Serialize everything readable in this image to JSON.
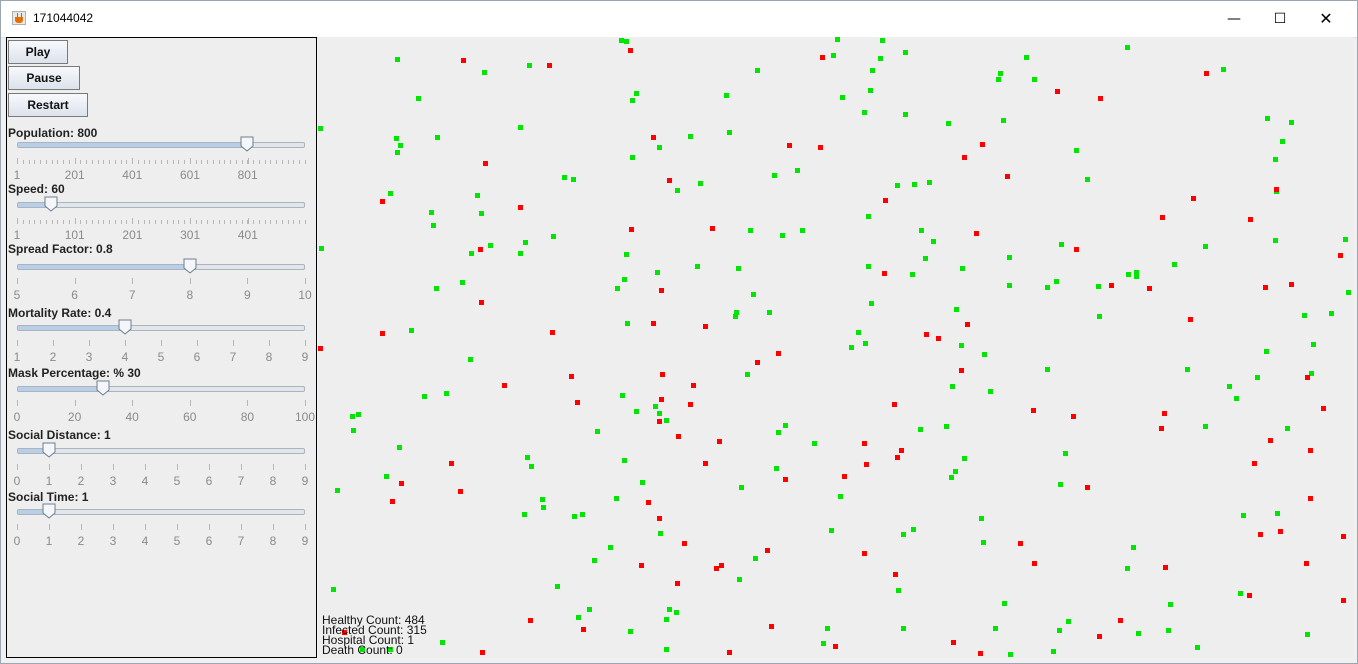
{
  "window": {
    "title": "171044042",
    "minimize_glyph": "—",
    "maximize_glyph": "☐",
    "close_glyph": "✕",
    "icon": "java-icon"
  },
  "buttons": {
    "play": "Play",
    "pause": "Pause",
    "restart": "Restart"
  },
  "sliders": [
    {
      "id": "population",
      "label": "Population: 800",
      "min": 1,
      "max": 1000,
      "value": 800,
      "ticks": [
        "1",
        "201",
        "401",
        "601",
        "801"
      ],
      "tick_values": [
        1,
        201,
        401,
        601,
        801
      ],
      "minor_ticks": true
    },
    {
      "id": "speed",
      "label": "Speed: 60",
      "min": 1,
      "max": 500,
      "value": 60,
      "ticks": [
        "1",
        "101",
        "201",
        "301",
        "401"
      ],
      "tick_values": [
        1,
        101,
        201,
        301,
        401
      ],
      "minor_ticks": true
    },
    {
      "id": "spread",
      "label": "Spread Factor: 0.8",
      "min": 5,
      "max": 10,
      "value": 8,
      "ticks": [
        "5",
        "6",
        "7",
        "8",
        "9",
        "10"
      ],
      "tick_values": [
        5,
        6,
        7,
        8,
        9,
        10
      ],
      "minor_ticks": false
    },
    {
      "id": "mortality",
      "label": "Mortality Rate: 0.4",
      "min": 1,
      "max": 9,
      "value": 4,
      "ticks": [
        "1",
        "2",
        "3",
        "4",
        "5",
        "6",
        "7",
        "8",
        "9"
      ],
      "tick_values": [
        1,
        2,
        3,
        4,
        5,
        6,
        7,
        8,
        9
      ],
      "minor_ticks": false
    },
    {
      "id": "mask",
      "label": "Mask Percentage: % 30",
      "min": 0,
      "max": 100,
      "value": 30,
      "ticks": [
        "0",
        "20",
        "40",
        "60",
        "80",
        "100"
      ],
      "tick_values": [
        0,
        20,
        40,
        60,
        80,
        100
      ],
      "minor_ticks": false
    },
    {
      "id": "distance",
      "label": "Social Distance: 1",
      "min": 0,
      "max": 9,
      "value": 1,
      "ticks": [
        "0",
        "1",
        "2",
        "3",
        "4",
        "5",
        "6",
        "7",
        "8",
        "9"
      ],
      "tick_values": [
        0,
        1,
        2,
        3,
        4,
        5,
        6,
        7,
        8,
        9
      ],
      "minor_ticks": false
    },
    {
      "id": "time",
      "label": "Social Time: 1",
      "min": 0,
      "max": 9,
      "value": 1,
      "ticks": [
        "0",
        "1",
        "2",
        "3",
        "4",
        "5",
        "6",
        "7",
        "8",
        "9"
      ],
      "tick_values": [
        0,
        1,
        2,
        3,
        4,
        5,
        6,
        7,
        8,
        9
      ],
      "minor_ticks": false
    }
  ],
  "stats": {
    "healthy": "Healthy Count: 484",
    "infected": "Infected Count: 315",
    "hospital": "Hospital Count: 1",
    "death": "Death Count: 0"
  },
  "colors": {
    "healthy": "#00e600",
    "infected": "#ff0000",
    "canvas_bg": "#eeeeee"
  },
  "simulation": {
    "healthy_count": 484,
    "infected_count": 315
  }
}
